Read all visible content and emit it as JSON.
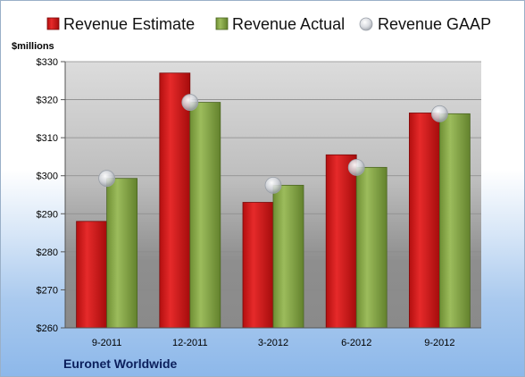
{
  "chart_data": {
    "type": "bar",
    "title": "",
    "ylabel": "$millions",
    "xlabel": "",
    "categories": [
      "9-2011",
      "12-2011",
      "3-2012",
      "6-2012",
      "9-2012"
    ],
    "series": [
      {
        "name": "Revenue Estimate",
        "values": [
          288,
          327,
          293,
          305.5,
          316.5
        ],
        "color": "#d81c1c"
      },
      {
        "name": "Revenue Actual",
        "values": [
          299.3,
          319.3,
          297.5,
          302.2,
          316.3
        ],
        "color": "#8fb04e"
      },
      {
        "name": "Revenue GAAP",
        "values": [
          299.3,
          319.3,
          297.5,
          302.2,
          316.3
        ],
        "color": "#c8ccd4",
        "marker": "circle"
      }
    ],
    "ylim": [
      260,
      330
    ],
    "yticks": [
      "$260",
      "$270",
      "$280",
      "$290",
      "$300",
      "$310",
      "$320",
      "$330"
    ],
    "grid": true,
    "legend": "top"
  },
  "footer": {
    "company": "Euronet Worldwide"
  }
}
